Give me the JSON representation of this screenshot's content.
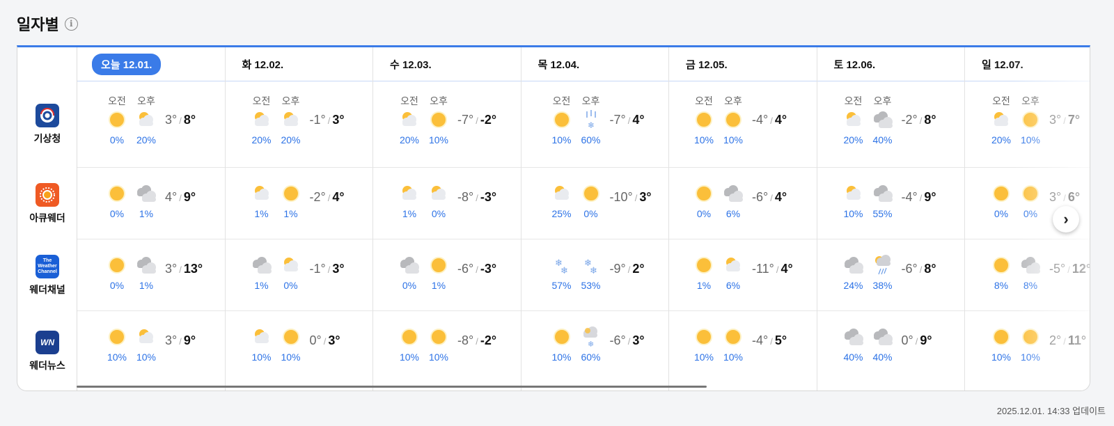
{
  "title": "일자별",
  "info_icon": "info-icon",
  "ampm": [
    "오전",
    "오후"
  ],
  "updated": "2025.12.01. 14:33 업데이트",
  "colors": {
    "accent": "#3a7be8",
    "pop": "#2c72e6"
  },
  "providers": [
    {
      "name": "기상청",
      "logo_color": "#1d4a9c",
      "logo_text": ""
    },
    {
      "name": "아큐웨더",
      "logo_color": "#ef5a24",
      "logo_text": ""
    },
    {
      "name": "웨더채널",
      "logo_color": "#1a5fd6",
      "logo_text": "The Weather Channel"
    },
    {
      "name": "웨더뉴스",
      "logo_color": "#1b3f8f",
      "logo_text": "WN"
    }
  ],
  "days": [
    {
      "label": "오늘 12.01.",
      "today": true,
      "f": [
        [
          "sun",
          "partly",
          "0%",
          "20%",
          "3°",
          "8°"
        ],
        [
          "sun",
          "cloudy",
          "0%",
          "1%",
          "4°",
          "9°"
        ],
        [
          "sun",
          "cloudy",
          "0%",
          "1%",
          "3°",
          "13°"
        ],
        [
          "sun",
          "partly",
          "10%",
          "10%",
          "3°",
          "9°"
        ]
      ]
    },
    {
      "label": "화 12.02.",
      "f": [
        [
          "partly",
          "partly",
          "20%",
          "20%",
          "-1°",
          "3°"
        ],
        [
          "partly",
          "sun",
          "1%",
          "1%",
          "-2°",
          "4°"
        ],
        [
          "cloudy",
          "partly",
          "1%",
          "0%",
          "-1°",
          "3°"
        ],
        [
          "partly",
          "sun",
          "10%",
          "10%",
          "0°",
          "3°"
        ]
      ]
    },
    {
      "label": "수 12.03.",
      "f": [
        [
          "partly",
          "sun",
          "20%",
          "10%",
          "-7°",
          "-2°"
        ],
        [
          "partly",
          "partly",
          "1%",
          "0%",
          "-8°",
          "-3°"
        ],
        [
          "cloudy",
          "sun",
          "0%",
          "1%",
          "-6°",
          "-3°"
        ],
        [
          "sun",
          "sun",
          "10%",
          "10%",
          "-8°",
          "-2°"
        ]
      ]
    },
    {
      "label": "목 12.04.",
      "f": [
        [
          "sun",
          "sleet",
          "10%",
          "60%",
          "-7°",
          "4°"
        ],
        [
          "partly",
          "sun",
          "25%",
          "0%",
          "-10°",
          "3°"
        ],
        [
          "snow",
          "snow",
          "57%",
          "53%",
          "-9°",
          "2°"
        ],
        [
          "sun",
          "cloud-snow",
          "10%",
          "60%",
          "-6°",
          "3°"
        ]
      ]
    },
    {
      "label": "금 12.05.",
      "f": [
        [
          "sun",
          "sun",
          "10%",
          "10%",
          "-4°",
          "4°"
        ],
        [
          "sun",
          "cloudy",
          "0%",
          "6%",
          "-6°",
          "4°"
        ],
        [
          "sun",
          "partly",
          "1%",
          "6%",
          "-11°",
          "4°"
        ],
        [
          "sun",
          "sun",
          "10%",
          "10%",
          "-4°",
          "5°"
        ]
      ]
    },
    {
      "label": "토 12.06.",
      "f": [
        [
          "partly",
          "cloudy",
          "20%",
          "40%",
          "-2°",
          "8°"
        ],
        [
          "partly",
          "cloudy",
          "10%",
          "55%",
          "-4°",
          "9°"
        ],
        [
          "cloudy",
          "sun-rain",
          "24%",
          "38%",
          "-6°",
          "8°"
        ],
        [
          "cloudy",
          "cloudy",
          "40%",
          "40%",
          "0°",
          "9°"
        ]
      ]
    },
    {
      "label": "일 12.07.",
      "f": [
        [
          "partly",
          "sun",
          "20%",
          "10%",
          "3°",
          "7°"
        ],
        [
          "sun",
          "sun",
          "0%",
          "0%",
          "3°",
          "6°"
        ],
        [
          "sun",
          "cloudy",
          "8%",
          "8%",
          "-5°",
          "12°"
        ],
        [
          "sun",
          "sun",
          "10%",
          "10%",
          "2°",
          "11°"
        ]
      ]
    }
  ]
}
